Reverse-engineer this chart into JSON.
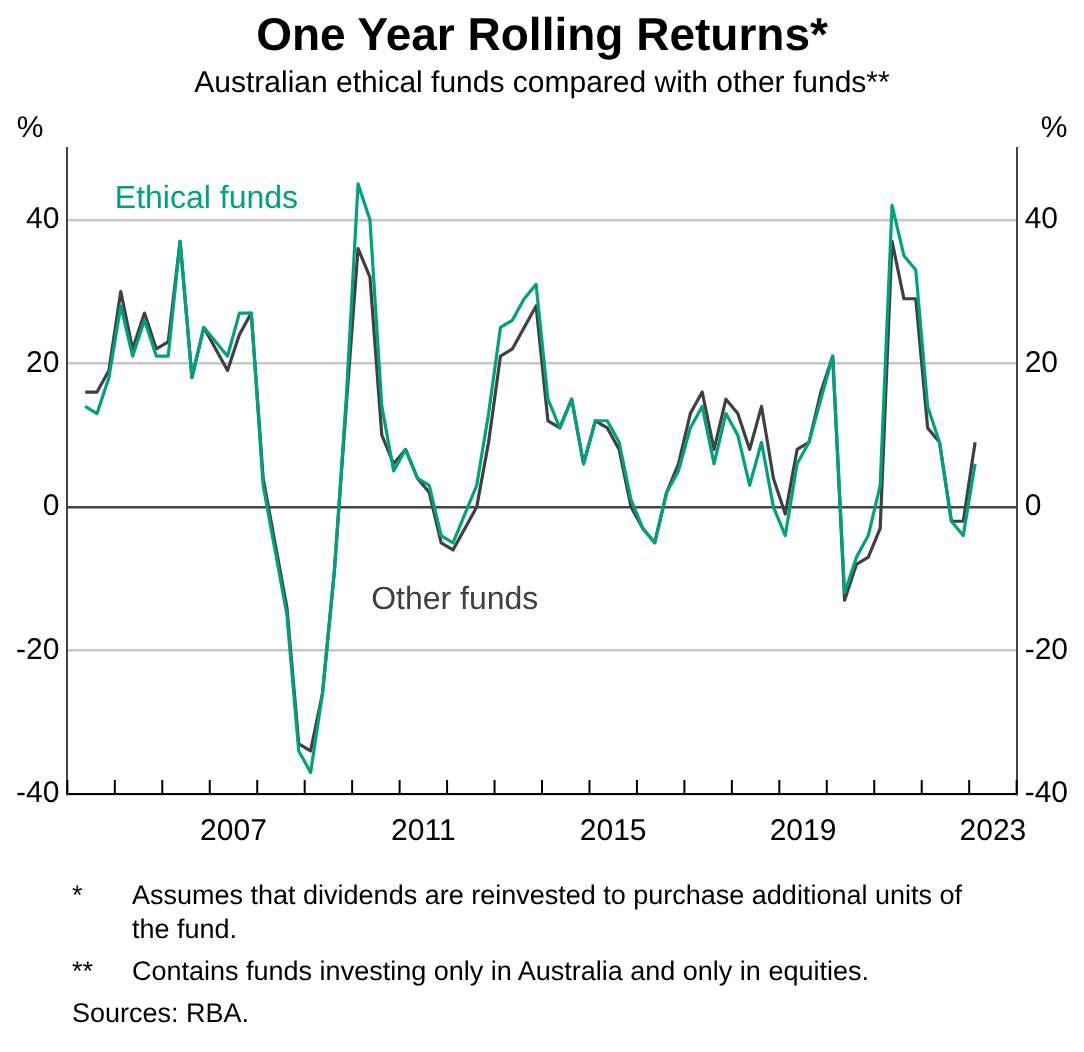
{
  "chart_data": {
    "type": "line",
    "title": "One Year Rolling Returns*",
    "subtitle": "Australian ethical funds compared with other funds**",
    "ylabel": "%",
    "y2label": "%",
    "x": [
      2004.375,
      2004.625,
      2004.875,
      2005.125,
      2005.375,
      2005.625,
      2005.875,
      2006.125,
      2006.375,
      2006.625,
      2006.875,
      2007.125,
      2007.375,
      2007.625,
      2007.875,
      2008.125,
      2008.375,
      2008.625,
      2008.875,
      2009.125,
      2009.375,
      2009.625,
      2009.875,
      2010.125,
      2010.375,
      2010.625,
      2010.875,
      2011.125,
      2011.375,
      2011.625,
      2011.875,
      2012.125,
      2012.375,
      2012.625,
      2012.875,
      2013.125,
      2013.375,
      2013.625,
      2013.875,
      2014.125,
      2014.375,
      2014.625,
      2014.875,
      2015.125,
      2015.375,
      2015.625,
      2015.875,
      2016.125,
      2016.375,
      2016.625,
      2016.875,
      2017.125,
      2017.375,
      2017.625,
      2017.875,
      2018.125,
      2018.375,
      2018.625,
      2018.875,
      2019.125,
      2019.375,
      2019.625,
      2019.875,
      2020.125,
      2020.375,
      2020.625,
      2020.875,
      2021.125,
      2021.375,
      2021.625,
      2021.875,
      2022.125,
      2022.375,
      2022.625,
      2022.875,
      2023.125
    ],
    "series": [
      {
        "name": "Ethical funds",
        "color": "#00a082",
        "values": [
          14,
          13,
          18,
          28,
          21,
          26,
          21,
          21,
          37,
          18,
          25,
          23,
          21,
          27,
          27,
          3,
          -6,
          -15,
          -34,
          -37,
          -26,
          -9,
          15,
          45,
          40,
          14,
          5,
          8,
          4,
          3,
          -4,
          -5,
          -1,
          3,
          13,
          25,
          26,
          29,
          31,
          15,
          11,
          15,
          6,
          12,
          12,
          9,
          1,
          -3,
          -5,
          2,
          5,
          11,
          14,
          6,
          13,
          10,
          3,
          9,
          0,
          -4,
          6,
          9,
          15,
          21,
          -12,
          -7,
          -4,
          3,
          42,
          35,
          33,
          14,
          9,
          -2,
          -4,
          6
        ]
      },
      {
        "name": "Other funds",
        "color": "#404040",
        "values": [
          16,
          16,
          19,
          30,
          22,
          27,
          22,
          23,
          37,
          18,
          25,
          22,
          19,
          24,
          27,
          4,
          -5,
          -14,
          -33,
          -34,
          -26,
          -9,
          14,
          36,
          32,
          10,
          6,
          8,
          4,
          2,
          -5,
          -6,
          -3,
          0,
          9,
          21,
          22,
          25,
          28,
          12,
          11,
          15,
          6,
          12,
          11,
          8,
          0,
          -3,
          -5,
          2,
          6,
          13,
          16,
          8,
          15,
          13,
          8,
          14,
          4,
          -1,
          8,
          9,
          16,
          21,
          -13,
          -8,
          -7,
          -3,
          37,
          29,
          29,
          11,
          9,
          -2,
          -2,
          9
        ]
      }
    ],
    "xlim": [
      2004,
      2024
    ],
    "xticks": [
      {
        "value": 2004,
        "label": null
      },
      {
        "value": 2005,
        "label": null
      },
      {
        "value": 2006,
        "label": null
      },
      {
        "value": 2007,
        "label": null
      },
      {
        "value": 2007.5,
        "label": "2007"
      },
      {
        "value": 2008,
        "label": null
      },
      {
        "value": 2009,
        "label": null
      },
      {
        "value": 2010,
        "label": null
      },
      {
        "value": 2011,
        "label": null
      },
      {
        "value": 2011.5,
        "label": "2011"
      },
      {
        "value": 2012,
        "label": null
      },
      {
        "value": 2013,
        "label": null
      },
      {
        "value": 2014,
        "label": null
      },
      {
        "value": 2015,
        "label": null
      },
      {
        "value": 2015.5,
        "label": "2015"
      },
      {
        "value": 2016,
        "label": null
      },
      {
        "value": 2017,
        "label": null
      },
      {
        "value": 2018,
        "label": null
      },
      {
        "value": 2019,
        "label": null
      },
      {
        "value": 2019.5,
        "label": "2019"
      },
      {
        "value": 2020,
        "label": null
      },
      {
        "value": 2021,
        "label": null
      },
      {
        "value": 2022,
        "label": null
      },
      {
        "value": 2023,
        "label": null
      },
      {
        "value": 2023.5,
        "label": "2023"
      },
      {
        "value": 2024,
        "label": null
      }
    ],
    "ylim": [
      -40,
      50
    ],
    "yticks": [
      -40,
      -20,
      0,
      20,
      40
    ],
    "y2lim": [
      -40,
      50
    ],
    "y2ticks": [
      -40,
      -20,
      0,
      20,
      40
    ],
    "grid": "y",
    "marker": "none",
    "line_style": "solid",
    "annotations": [
      "*\tAssumes that dividends are reinvested to purchase additional units of the fund.",
      "**\tContains funds investing only in Australia and only in equities.",
      "Sources: RBA."
    ]
  }
}
